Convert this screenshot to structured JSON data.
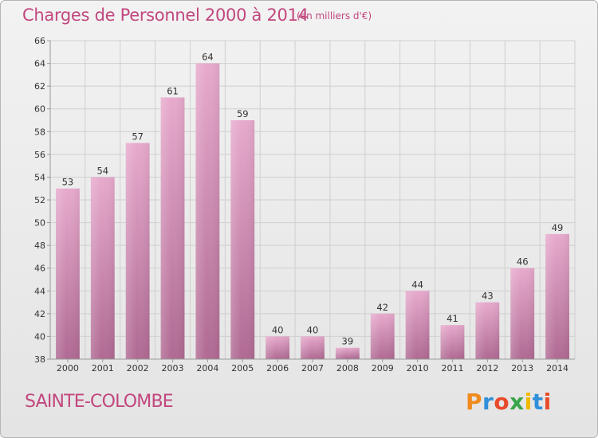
{
  "header": {
    "title": "Charges de Personnel 2000 à 2014",
    "subtitle": "(en milliers d'€)"
  },
  "footer": {
    "commune": "SAINTE-COLOMBE",
    "logo_text": "Proxiti",
    "logo_letter_colors": [
      "#f08a1c",
      "#2f8fd8",
      "#e84a2a",
      "#3aa54a",
      "#f0b800",
      "#2f8fd8",
      "#e84a2a"
    ]
  },
  "colors": {
    "bar_top": "#e7aacd",
    "bar_bottom": "#b06a93",
    "grid": "#cfcfcf",
    "axis": "#999999",
    "accent": "#c2477e"
  },
  "chart_data": {
    "type": "bar",
    "title": "Charges de Personnel 2000 à 2014",
    "subtitle": "(en milliers d'€)",
    "xlabel": "",
    "ylabel": "",
    "categories": [
      "2000",
      "2001",
      "2002",
      "2003",
      "2004",
      "2005",
      "2006",
      "2007",
      "2008",
      "2009",
      "2010",
      "2011",
      "2012",
      "2013",
      "2014"
    ],
    "values": [
      53,
      54,
      57,
      61,
      64,
      59,
      40,
      40,
      39,
      42,
      44,
      41,
      43,
      46,
      49
    ],
    "ylim": [
      38,
      66
    ],
    "yticks": [
      38,
      40,
      42,
      44,
      46,
      48,
      50,
      52,
      54,
      56,
      58,
      60,
      62,
      64,
      66
    ],
    "grid": true,
    "data_labels": true,
    "legend": "none"
  }
}
